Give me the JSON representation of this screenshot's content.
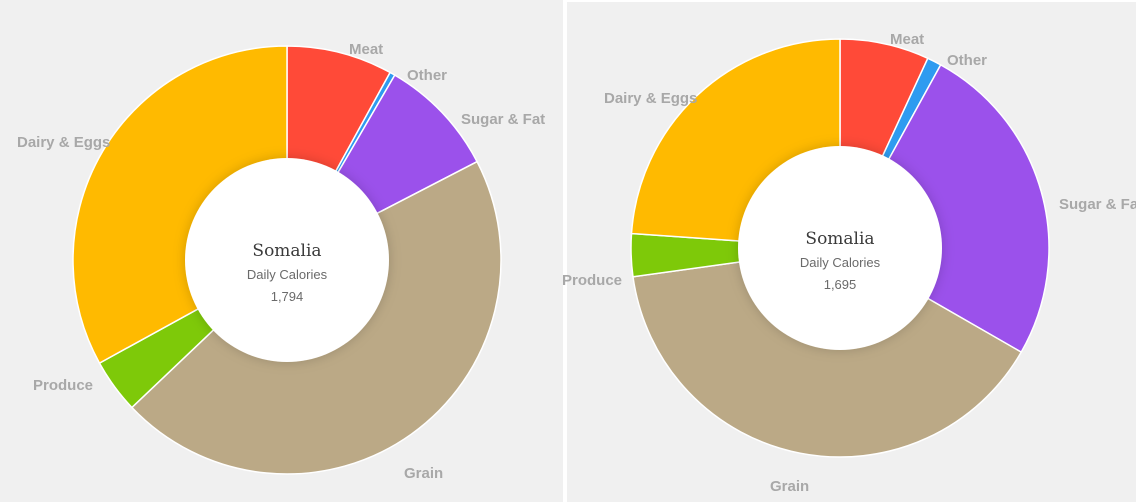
{
  "colors": {
    "meat": "#ff4a38",
    "other": "#2e9bf0",
    "sugar_fat": "#9b51eb",
    "grain": "#bba986",
    "produce": "#7ec909",
    "dairy_eggs": "#ffba00"
  },
  "chart_data": [
    {
      "type": "pie",
      "donut": true,
      "center": {
        "title": "Somalia",
        "subtitle": "Daily Calories",
        "value": "1,794"
      },
      "categories": [
        "Meat",
        "Other",
        "Sugar & Fat",
        "Grain",
        "Produce",
        "Dairy & Eggs"
      ],
      "values": [
        8.0,
        0.4,
        9.0,
        45.5,
        4.1,
        33.0
      ]
    },
    {
      "type": "pie",
      "donut": true,
      "center": {
        "title": "Somalia",
        "subtitle": "Daily Calories",
        "value": "1,695"
      },
      "categories": [
        "Meat",
        "Other",
        "Sugar & Fat",
        "Grain",
        "Produce",
        "Dairy & Eggs"
      ],
      "values": [
        6.9,
        1.1,
        25.3,
        39.5,
        3.3,
        23.9
      ]
    }
  ]
}
